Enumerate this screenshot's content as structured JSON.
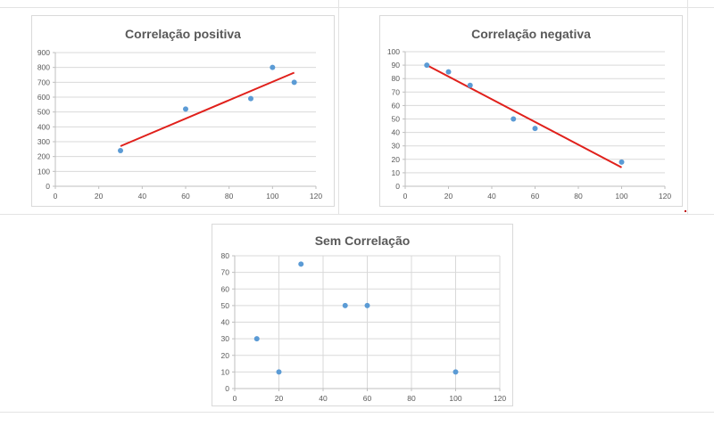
{
  "colors": {
    "marker": "#5b9bd5",
    "trend": "#e0201b",
    "grid": "#d9d9d9",
    "axis": "#bfbfbf",
    "text": "#595959"
  },
  "chart_data": [
    {
      "type": "scatter",
      "title": "Correlação positiva",
      "x": [
        30,
        60,
        90,
        100,
        110
      ],
      "y": [
        240,
        520,
        590,
        800,
        700
      ],
      "xlim": [
        0,
        120
      ],
      "ylim": [
        0,
        900
      ],
      "xticks": [
        0,
        20,
        40,
        60,
        80,
        100,
        120
      ],
      "yticks": [
        0,
        100,
        200,
        300,
        400,
        500,
        600,
        700,
        800,
        900
      ],
      "trendline": {
        "x": [
          30,
          110
        ],
        "y": [
          270,
          765
        ]
      },
      "grid": "horizontal",
      "legend": "none"
    },
    {
      "type": "scatter",
      "title": "Correlação negativa",
      "x": [
        10,
        20,
        30,
        50,
        60,
        100
      ],
      "y": [
        90,
        85,
        75,
        50,
        43,
        18
      ],
      "xlim": [
        0,
        120
      ],
      "ylim": [
        0,
        100
      ],
      "xticks": [
        0,
        20,
        40,
        60,
        80,
        100,
        120
      ],
      "yticks": [
        0,
        10,
        20,
        30,
        40,
        50,
        60,
        70,
        80,
        90,
        100
      ],
      "trendline": {
        "x": [
          10,
          100
        ],
        "y": [
          90,
          14
        ]
      },
      "grid": "horizontal",
      "legend": "none"
    },
    {
      "type": "scatter",
      "title": "Sem Correlação",
      "x": [
        10,
        20,
        30,
        50,
        60,
        100
      ],
      "y": [
        30,
        10,
        75,
        50,
        50,
        10
      ],
      "xlim": [
        0,
        120
      ],
      "ylim": [
        0,
        80
      ],
      "xticks": [
        0,
        20,
        40,
        60,
        80,
        100,
        120
      ],
      "yticks": [
        0,
        10,
        20,
        30,
        40,
        50,
        60,
        70,
        80
      ],
      "grid": "both",
      "legend": "none"
    }
  ]
}
